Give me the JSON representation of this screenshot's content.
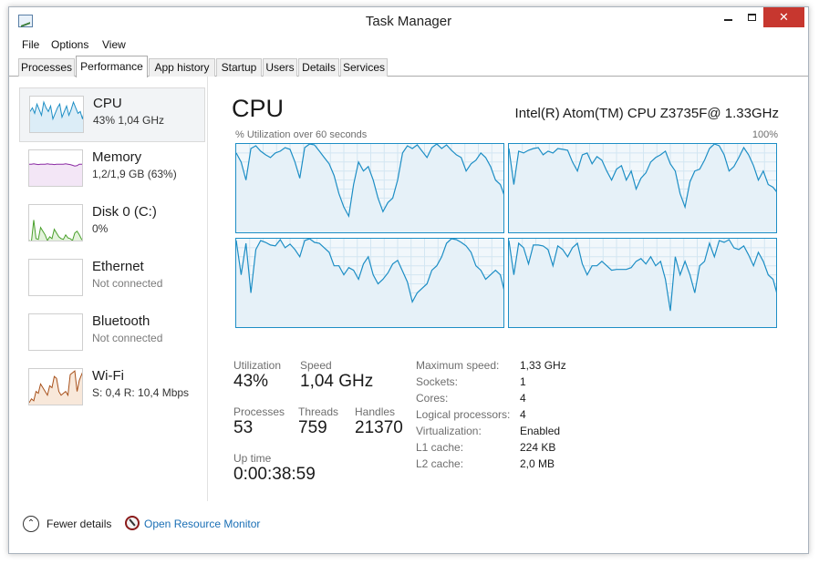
{
  "window": {
    "title": "Task Manager"
  },
  "titlebar": {
    "minimize": "–",
    "maximize": "☐",
    "close": "✕"
  },
  "menu": [
    "File",
    "Options",
    "View"
  ],
  "tabs": [
    "Processes",
    "Performance",
    "App history",
    "Startup",
    "Users",
    "Details",
    "Services"
  ],
  "active_tab": "Performance",
  "sidebar": [
    {
      "name": "CPU",
      "sub": "43%  1,04 GHz",
      "selected": true,
      "graph_color": "#1d8ec5"
    },
    {
      "name": "Memory",
      "sub": "1,2/1,9 GB (63%)",
      "selected": false,
      "graph_color": "#8b2ba3"
    },
    {
      "name": "Disk 0 (C:)",
      "sub": "0%",
      "selected": false,
      "graph_color": "#4aa02c"
    },
    {
      "name": "Ethernet",
      "sub": "Not connected",
      "selected": false,
      "graph_color": "#cfcfcf"
    },
    {
      "name": "Bluetooth",
      "sub": "Not connected",
      "selected": false,
      "graph_color": "#cfcfcf"
    },
    {
      "name": "Wi-Fi",
      "sub": "S: 0,4  R: 10,4 Mbps",
      "selected": false,
      "graph_color": "#a7501a"
    }
  ],
  "cpu": {
    "title": "CPU",
    "model": "Intel(R) Atom(TM) CPU Z3735F@ 1.33GHz",
    "graph_caption": "% Utilization over 60 seconds",
    "graph_max": "100%",
    "stats": {
      "utilization_label": "Utilization",
      "utilization": "43%",
      "speed_label": "Speed",
      "speed": "1,04 GHz",
      "processes_label": "Processes",
      "processes": "53",
      "threads_label": "Threads",
      "threads": "759",
      "handles_label": "Handles",
      "handles": "21370",
      "uptime_label": "Up time",
      "uptime": "0:00:38:59"
    },
    "details": [
      {
        "label": "Maximum speed:",
        "value": "1,33 GHz"
      },
      {
        "label": "Sockets:",
        "value": "1"
      },
      {
        "label": "Cores:",
        "value": "4"
      },
      {
        "label": "Logical processors:",
        "value": "4"
      },
      {
        "label": "Virtualization:",
        "value": "Enabled"
      },
      {
        "label": "L1 cache:",
        "value": "224 KB"
      },
      {
        "label": "L2 cache:",
        "value": "2,0 MB"
      }
    ],
    "graph_line_color": "#1d8ec5",
    "cores": [
      [
        90,
        80,
        60,
        95,
        98,
        92,
        88,
        85,
        90,
        92,
        96,
        94,
        80,
        62,
        96,
        100,
        99,
        92,
        85,
        78,
        65,
        45,
        30,
        20,
        55,
        80,
        70,
        75,
        60,
        40,
        25,
        35,
        40,
        60,
        90,
        98,
        95,
        99,
        92,
        85,
        96,
        100,
        95,
        99,
        93,
        88,
        85,
        70,
        78,
        82,
        90,
        85,
        75,
        60,
        55,
        40
      ],
      [
        95,
        55,
        92,
        90,
        93,
        95,
        96,
        88,
        92,
        90,
        95,
        94,
        93,
        80,
        70,
        88,
        90,
        78,
        86,
        82,
        70,
        60,
        72,
        76,
        60,
        70,
        50,
        62,
        68,
        80,
        85,
        88,
        92,
        78,
        70,
        45,
        30,
        58,
        70,
        72,
        82,
        95,
        100,
        98,
        88,
        70,
        75,
        85,
        96,
        88,
        76,
        60,
        70,
        55,
        52,
        45
      ],
      [
        98,
        60,
        95,
        40,
        88,
        98,
        96,
        93,
        92,
        99,
        90,
        94,
        88,
        80,
        98,
        100,
        96,
        95,
        90,
        85,
        70,
        70,
        60,
        68,
        65,
        55,
        72,
        80,
        60,
        50,
        55,
        62,
        72,
        76,
        64,
        52,
        30,
        40,
        45,
        50,
        65,
        70,
        80,
        95,
        100,
        99,
        96,
        92,
        85,
        70,
        65,
        55,
        60,
        65,
        60,
        38
      ],
      [
        98,
        60,
        95,
        90,
        72,
        93,
        93,
        92,
        88,
        70,
        92,
        88,
        80,
        90,
        95,
        72,
        60,
        70,
        70,
        75,
        70,
        65,
        66,
        66,
        66,
        68,
        75,
        78,
        72,
        80,
        70,
        75,
        55,
        20,
        80,
        60,
        75,
        60,
        40,
        70,
        75,
        95,
        80,
        98,
        96,
        99,
        90,
        88,
        92,
        82,
        70,
        85,
        75,
        60,
        55,
        35
      ]
    ],
    "sidebar_graphs": {
      "CPU": [
        60,
        70,
        55,
        80,
        65,
        50,
        85,
        70,
        60,
        75,
        40,
        55,
        70,
        80,
        45,
        60,
        75,
        50,
        65,
        85,
        70,
        55,
        60,
        40,
        70
      ],
      "Memory": [
        63,
        63,
        64,
        63,
        62,
        63,
        63,
        63,
        64,
        63,
        63,
        62,
        63,
        63,
        63,
        63,
        64,
        63,
        62,
        60,
        58,
        59,
        63,
        63,
        63
      ],
      "Disk 0 (C:)": [
        5,
        3,
        60,
        10,
        8,
        40,
        30,
        20,
        5,
        15,
        10,
        35,
        25,
        15,
        10,
        8,
        20,
        12,
        10,
        5,
        25,
        30,
        20,
        8,
        5
      ],
      "Wi-Fi": [
        10,
        20,
        15,
        40,
        35,
        60,
        50,
        40,
        30,
        55,
        50,
        80,
        75,
        40,
        30,
        35,
        40,
        30,
        85,
        90,
        95,
        40,
        70,
        85,
        100
      ]
    }
  },
  "footer": {
    "fewer_details": "Fewer details",
    "resource_monitor": "Open Resource Monitor"
  }
}
